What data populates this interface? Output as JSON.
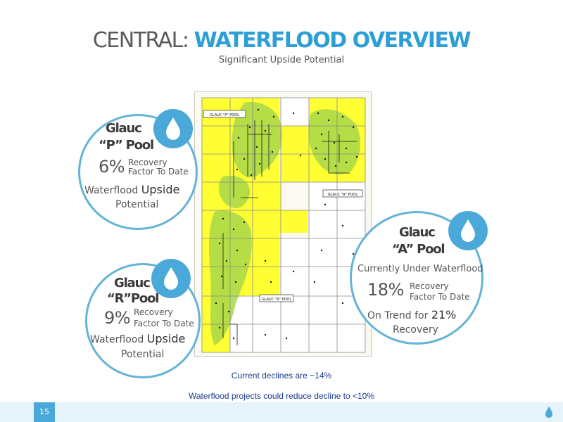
{
  "title": {
    "prefix": "CENTRAL:",
    "main": "WATERFLOOD OVERVIEW"
  },
  "subtitle": "Significant Upside Potential",
  "map": {
    "labels": {
      "p_pool": "GLAUC \"P\" POOL",
      "a_pool": "GLAUC \"A\" POOL",
      "r_pool": "GLAUC \"R\" POOL"
    },
    "colors": {
      "land": "#ffff33",
      "flood": "#a8d84a",
      "grid": "#8a8a8a"
    }
  },
  "callouts": {
    "p": {
      "name_line1": "Glauc",
      "name_line2": "“P” Pool",
      "pct": "6%",
      "rf1": "Recovery",
      "rf2": "Factor To Date",
      "upside1": "Waterflood",
      "upside2": "Upside",
      "upside3": "Potential"
    },
    "r": {
      "name_line1": "Glauc",
      "name_line2": "“R”Pool",
      "pct": "9%",
      "rf1": "Recovery",
      "rf2": "Factor To Date",
      "upside1": "Waterflood",
      "upside2": "Upside",
      "upside3": "Potential"
    },
    "a": {
      "name_line1": "Glauc",
      "name_line2": "“A” Pool",
      "status": "Currently Under Waterflood",
      "pct": "18%",
      "rf1": "Recovery",
      "rf2": "Factor To Date",
      "trend1": "On Trend for",
      "trend2": "21%",
      "trend3": "Recovery"
    }
  },
  "notes": {
    "decline": "Current declines are ~14%",
    "project": "Waterflood projects could reduce decline to <10%"
  },
  "footer": {
    "page": "15"
  },
  "icons": {
    "callout": "water-drop-icon",
    "footer": "water-drop-icon"
  },
  "colors": {
    "accent": "#2e9fd6",
    "circle_border": "#64b4d6",
    "note_text": "#1b3a8c",
    "footer_bg": "#e6f3fb"
  }
}
